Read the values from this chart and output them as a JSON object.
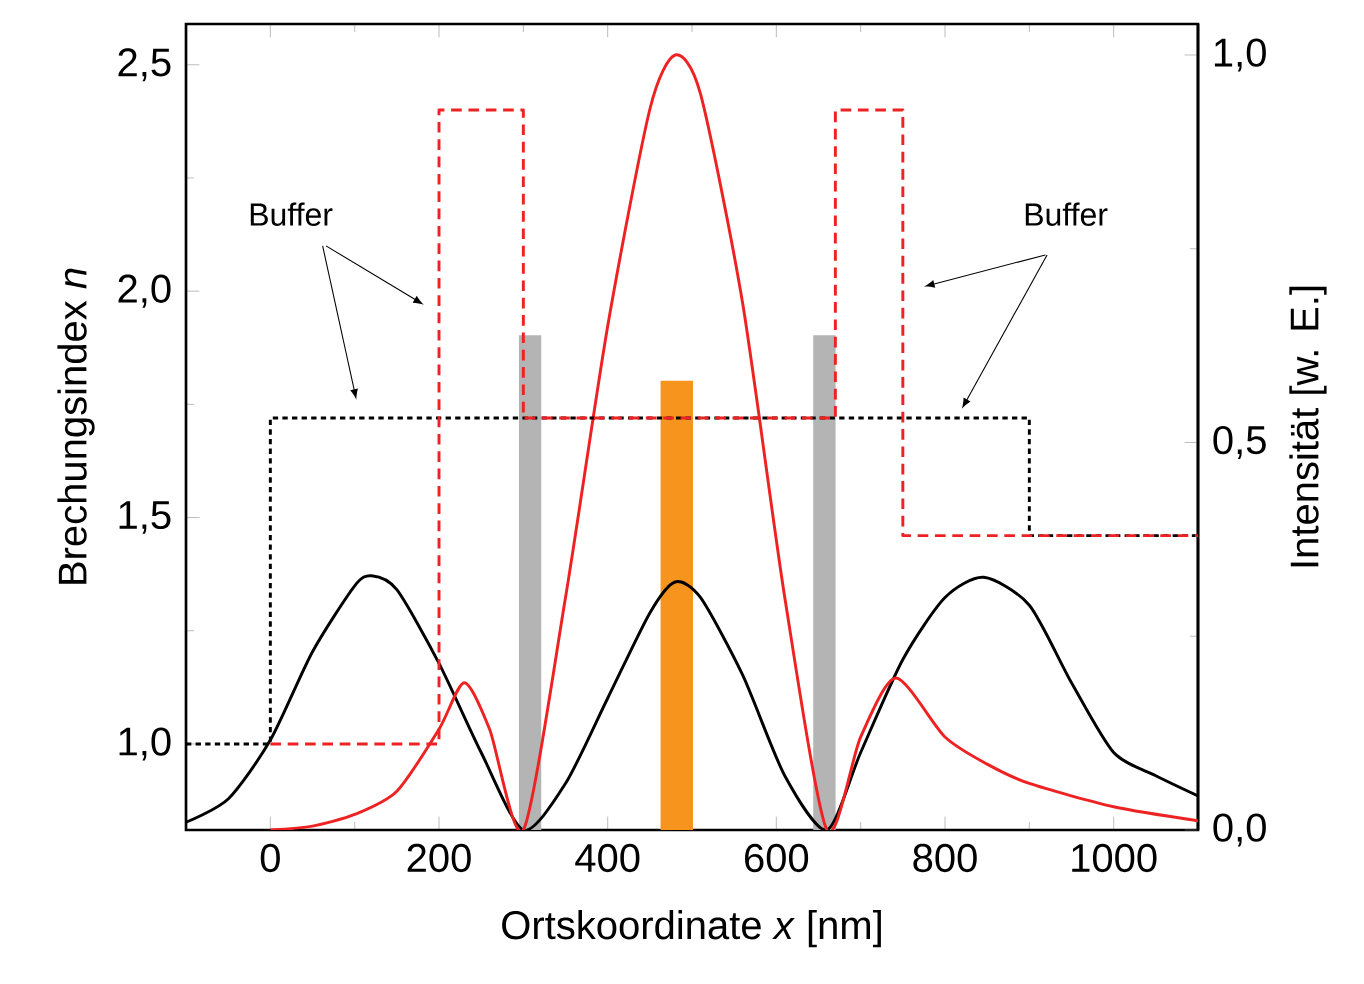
{
  "chart_data": {
    "type": "line",
    "xlabel": "Ortskoordinate *x* [nm]",
    "ylabel": "Brechungsindex *n*",
    "y2label": "Intensität [w. E.]",
    "xlim": [
      -100,
      1100
    ],
    "xticks": [
      0,
      200,
      400,
      600,
      800,
      1000
    ],
    "ylim": [
      0.81,
      2.59
    ],
    "yticks": [
      {
        "value": 1.0,
        "label": "1,0"
      },
      {
        "value": 1.5,
        "label": "1,5"
      },
      {
        "value": 2.0,
        "label": "2,0"
      },
      {
        "value": 2.5,
        "label": "2,5"
      }
    ],
    "y2lim": [
      0,
      1.04
    ],
    "y2ticks": [
      {
        "value": 0.0,
        "label": "0,0"
      },
      {
        "value": 0.5,
        "label": "0,5"
      },
      {
        "value": 1.0,
        "label": "1,0"
      }
    ],
    "annotations": [
      "Buffer",
      "Buffer"
    ],
    "series": [
      {
        "type": "step",
        "color": "#000000",
        "line_style": "dotted",
        "x": [
          -100,
          0,
          900,
          1100
        ],
        "values": [
          1.0,
          1.72,
          1.46,
          1.46
        ]
      },
      {
        "type": "step",
        "color": "#ee2222",
        "line_style": "dashed",
        "x": [
          0,
          200,
          300,
          670,
          750,
          1100
        ],
        "values": [
          1.0,
          2.4,
          1.72,
          2.4,
          1.46,
          1.46
        ]
      },
      {
        "axis": "y2",
        "color": "#000000",
        "line_style": "solid",
        "x": [
          -100,
          -50,
          0,
          50,
          100,
          120,
          150,
          200,
          250,
          300,
          350,
          400,
          450,
          480,
          510,
          560,
          610,
          660,
          700,
          750,
          800,
          846,
          900,
          950,
          1000,
          1050,
          1100
        ],
        "values": [
          0.01,
          0.04,
          0.116,
          0.23,
          0.315,
          0.328,
          0.31,
          0.215,
          0.1,
          0.0,
          0.06,
          0.17,
          0.28,
          0.32,
          0.3,
          0.2,
          0.07,
          0.0,
          0.1,
          0.22,
          0.3,
          0.326,
          0.29,
          0.19,
          0.1,
          0.07,
          0.044
        ]
      },
      {
        "axis": "y2",
        "color": "#ee2222",
        "line_style": "solid",
        "x": [
          0,
          50,
          100,
          150,
          200,
          230,
          260,
          300,
          350,
          400,
          450,
          480,
          510,
          560,
          610,
          660,
          700,
          742,
          800,
          850,
          900,
          1000,
          1100
        ],
        "values": [
          0.0,
          0.005,
          0.02,
          0.05,
          0.13,
          0.19,
          0.13,
          0.0,
          0.3,
          0.65,
          0.93,
          1.0,
          0.95,
          0.68,
          0.3,
          0.0,
          0.12,
          0.196,
          0.12,
          0.085,
          0.06,
          0.03,
          0.012
        ]
      },
      {
        "type": "bar",
        "color": "#b4b4b4",
        "x": [
          308,
          657
        ],
        "values": [
          1.9,
          1.9
        ]
      },
      {
        "type": "bar",
        "color": "#f7941d",
        "x": [
          482
        ],
        "values": [
          1.8
        ]
      }
    ]
  }
}
